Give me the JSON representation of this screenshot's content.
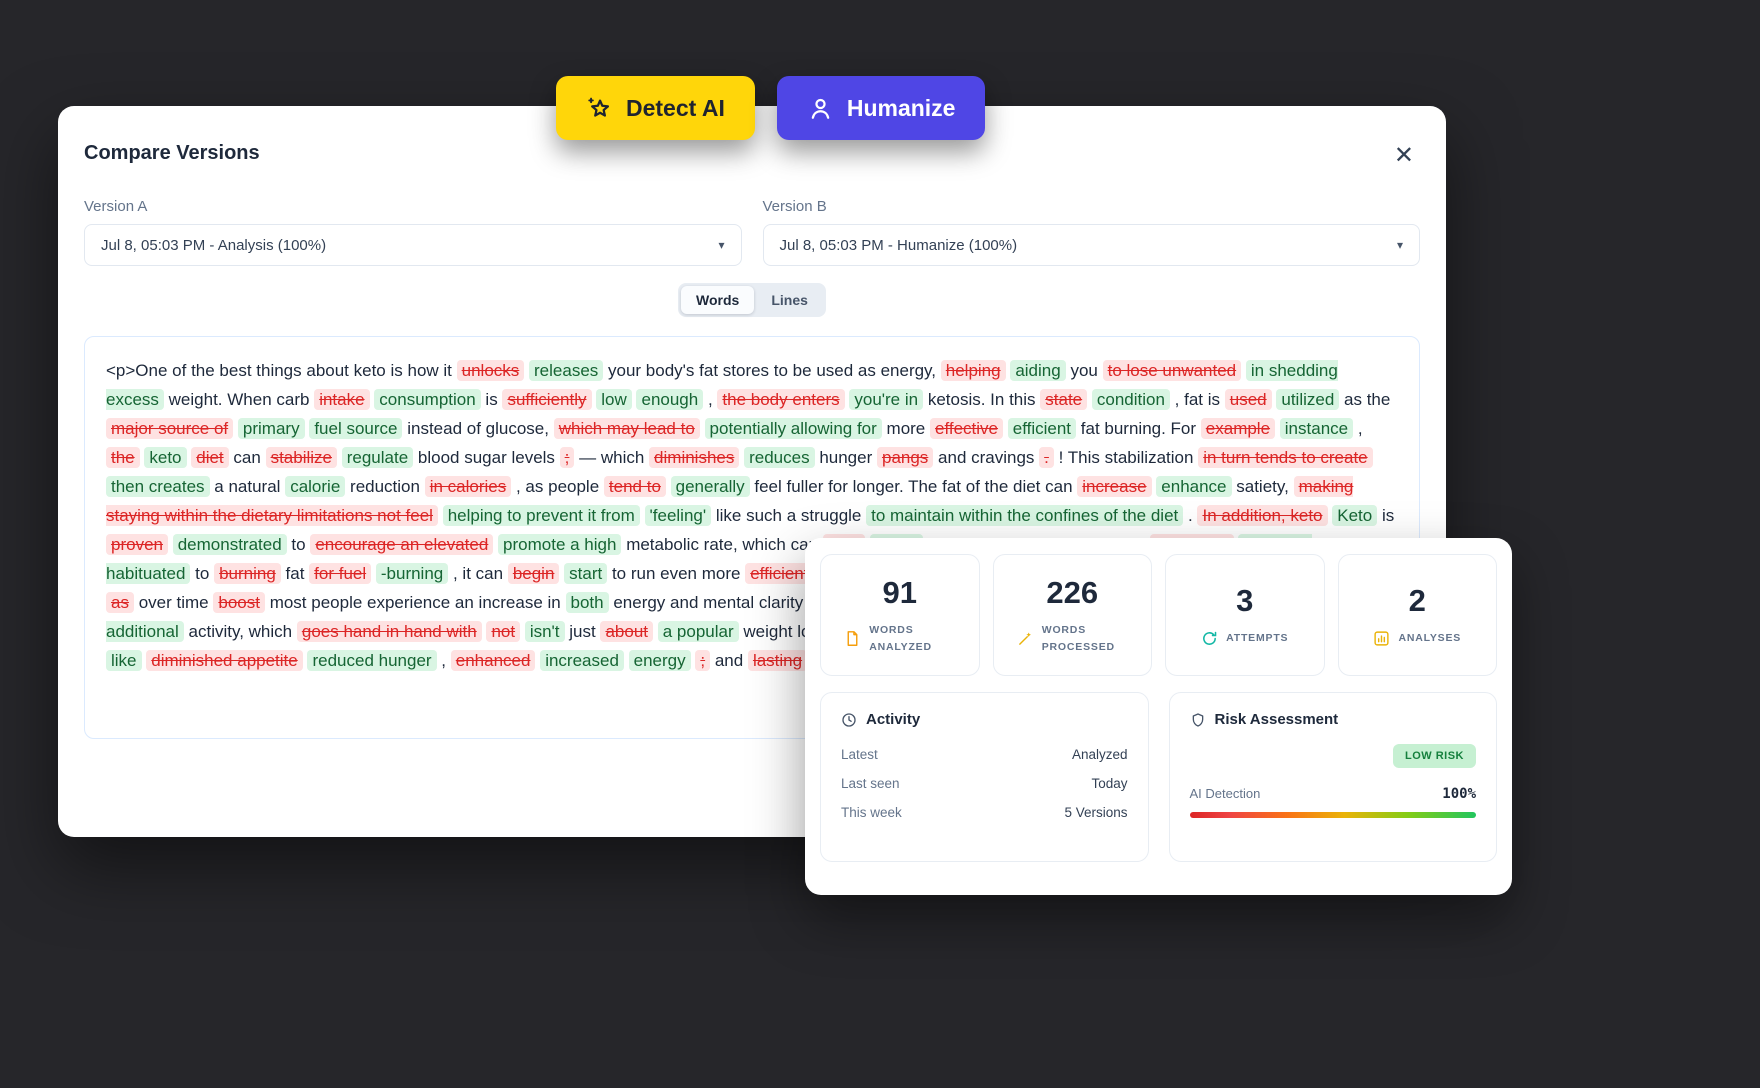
{
  "colors": {
    "background": "#26262a",
    "detect_button_bg": "#ffd60a",
    "humanize_button_bg": "#4f46e5",
    "removed_bg": "#fee2e2",
    "removed_text": "#dc2626",
    "added_bg": "#d9f5e3",
    "added_text": "#166534",
    "low_risk_badge_bg": "#c6f0d2",
    "low_risk_badge_text": "#15803d"
  },
  "top_buttons": {
    "detect": {
      "label": "Detect AI",
      "icon": "star-icon"
    },
    "humanize": {
      "label": "Humanize",
      "icon": "person-icon"
    }
  },
  "modal": {
    "title": "Compare Versions",
    "close_icon": "close-icon",
    "version_a": {
      "label": "Version A",
      "value": "Jul 8, 05:03 PM - Analysis (100%)",
      "icon": "chevron-down-icon"
    },
    "version_b": {
      "label": "Version B",
      "value": "Jul 8, 05:03 PM - Humanize (100%)",
      "icon": "chevron-down-icon"
    },
    "toggle": {
      "words": "Words",
      "lines": "Lines",
      "active": "Words"
    }
  },
  "diff": {
    "tokens": [
      {
        "k": "n",
        "t": "<p>One of the best things about keto is how it"
      },
      {
        "k": "d",
        "t": "unlocks"
      },
      {
        "k": "a",
        "t": "releases"
      },
      {
        "k": "n",
        "t": "your body's fat stores to be used as energy,"
      },
      {
        "k": "d",
        "t": "helping"
      },
      {
        "k": "a",
        "t": "aiding"
      },
      {
        "k": "n",
        "t": "you"
      },
      {
        "k": "d",
        "t": "to lose unwanted"
      },
      {
        "k": "a",
        "t": "in shedding excess"
      },
      {
        "k": "n",
        "t": "weight. When carb"
      },
      {
        "k": "d",
        "t": "intake"
      },
      {
        "k": "a",
        "t": "consumption"
      },
      {
        "k": "n",
        "t": "is"
      },
      {
        "k": "d",
        "t": "sufficiently"
      },
      {
        "k": "a",
        "t": "low"
      },
      {
        "k": "a",
        "t": "enough"
      },
      {
        "k": "n",
        "t": ","
      },
      {
        "k": "d",
        "t": "the body enters"
      },
      {
        "k": "a",
        "t": "you're in"
      },
      {
        "k": "n",
        "t": "ketosis. In this"
      },
      {
        "k": "d",
        "t": "state"
      },
      {
        "k": "a",
        "t": "condition"
      },
      {
        "k": "n",
        "t": ", fat is"
      },
      {
        "k": "d",
        "t": "used"
      },
      {
        "k": "a",
        "t": "utilized"
      },
      {
        "k": "n",
        "t": "as the"
      },
      {
        "k": "d",
        "t": "major source of"
      },
      {
        "k": "a",
        "t": "primary"
      },
      {
        "k": "a",
        "t": "fuel source"
      },
      {
        "k": "n",
        "t": "instead of glucose,"
      },
      {
        "k": "d",
        "t": "which may lead to"
      },
      {
        "k": "a",
        "t": "potentially allowing for"
      },
      {
        "k": "n",
        "t": "more"
      },
      {
        "k": "d",
        "t": "effective"
      },
      {
        "k": "a",
        "t": "efficient"
      },
      {
        "k": "n",
        "t": "fat burning. For"
      },
      {
        "k": "d",
        "t": "example"
      },
      {
        "k": "a",
        "t": "instance"
      },
      {
        "k": "n",
        "t": ","
      },
      {
        "k": "d",
        "t": "the"
      },
      {
        "k": "a",
        "t": "keto"
      },
      {
        "k": "d",
        "t": "diet"
      },
      {
        "k": "n",
        "t": "can"
      },
      {
        "k": "d",
        "t": "stabilize"
      },
      {
        "k": "a",
        "t": "regulate"
      },
      {
        "k": "n",
        "t": "blood sugar levels"
      },
      {
        "k": "d",
        "t": ";"
      },
      {
        "k": "n",
        "t": "— which"
      },
      {
        "k": "d",
        "t": "diminishes"
      },
      {
        "k": "a",
        "t": "reduces"
      },
      {
        "k": "n",
        "t": "hunger"
      },
      {
        "k": "d",
        "t": "pangs"
      },
      {
        "k": "n",
        "t": "and cravings"
      },
      {
        "k": "d",
        "t": "."
      },
      {
        "k": "n",
        "t": "! This stabilization"
      },
      {
        "k": "d",
        "t": "in turn tends to create"
      },
      {
        "k": "a",
        "t": "then creates"
      },
      {
        "k": "n",
        "t": "a natural"
      },
      {
        "k": "a",
        "t": "calorie"
      },
      {
        "k": "n",
        "t": "reduction"
      },
      {
        "k": "d",
        "t": "in calories"
      },
      {
        "k": "n",
        "t": ", as people"
      },
      {
        "k": "d",
        "t": "tend to"
      },
      {
        "k": "a",
        "t": "generally"
      },
      {
        "k": "n",
        "t": "feel fuller for longer. The fat of the diet can"
      },
      {
        "k": "d",
        "t": "increase"
      },
      {
        "k": "a",
        "t": "enhance"
      },
      {
        "k": "n",
        "t": "satiety,"
      },
      {
        "k": "d",
        "t": "making staying within the dietary limitations not feel"
      },
      {
        "k": "a",
        "t": "helping to prevent it from"
      },
      {
        "k": "a",
        "t": "'feeling'"
      },
      {
        "k": "n",
        "t": "like such a struggle"
      },
      {
        "k": "a",
        "t": "to maintain within the confines of the diet"
      },
      {
        "k": "n",
        "t": "."
      },
      {
        "k": "d",
        "t": "In addition, keto"
      },
      {
        "k": "a",
        "t": "Keto"
      },
      {
        "k": "n",
        "t": "is"
      },
      {
        "k": "d",
        "t": "proven"
      },
      {
        "k": "a",
        "t": "demonstrated"
      },
      {
        "k": "n",
        "t": "to"
      },
      {
        "k": "d",
        "t": "encourage an elevated"
      },
      {
        "k": "a",
        "t": "promote a high"
      },
      {
        "k": "n",
        "t": "metabolic rate, which can"
      },
      {
        "k": "d",
        "t": "help"
      },
      {
        "k": "a",
        "t": "assist"
      },
      {
        "k": "n",
        "t": "with weight loss. As the body"
      },
      {
        "k": "d",
        "t": "gets used"
      },
      {
        "k": "a",
        "t": "becomes habituated"
      },
      {
        "k": "n",
        "t": "to"
      },
      {
        "k": "d",
        "t": "burning"
      },
      {
        "k": "n",
        "t": "fat"
      },
      {
        "k": "d",
        "t": "for fuel"
      },
      {
        "k": "a",
        "t": "-burning"
      },
      {
        "k": "n",
        "t": ", it can"
      },
      {
        "k": "d",
        "t": "begin"
      },
      {
        "k": "a",
        "t": "start"
      },
      {
        "k": "n",
        "t": "to run even more"
      },
      {
        "k": "d",
        "t": "efficiently"
      },
      {
        "k": "a",
        "t": "readily"
      },
      {
        "k": "n",
        "t": "on stored fat,"
      },
      {
        "k": "d",
        "t": "resulting in still more"
      },
      {
        "k": "a",
        "t": "causing additional"
      },
      {
        "k": "n",
        "t": "fat loss"
      },
      {
        "k": "d",
        "t": "as"
      },
      {
        "k": "n",
        "t": "over time"
      },
      {
        "k": "d",
        "t": "boost"
      },
      {
        "k": "n",
        "t": "most people experience an increase in"
      },
      {
        "k": "a",
        "t": "both"
      },
      {
        "k": "n",
        "t": "energy and mental clarity"
      },
      {
        "k": "d",
        "t": "after"
      },
      {
        "k": "a",
        "t": "once"
      },
      {
        "k": "n",
        "t": "they've"
      },
      {
        "k": "a",
        "t": "is energizing"
      },
      {
        "k": "n",
        "t": "and"
      },
      {
        "k": "d",
        "t": "promote more"
      },
      {
        "k": "a",
        "t": "encourages additional"
      },
      {
        "k": "n",
        "t": "activity, which"
      },
      {
        "k": "d",
        "t": "goes hand in hand with"
      },
      {
        "k": "d",
        "t": "not"
      },
      {
        "k": "a",
        "t": "isn't"
      },
      {
        "k": "n",
        "t": "just"
      },
      {
        "k": "d",
        "t": "about"
      },
      {
        "k": "a",
        "t": "a popular"
      },
      {
        "k": "n",
        "t": "weight loss"
      },
      {
        "k": "d",
        "t": "by transforming"
      },
      {
        "k": "a",
        "t": "diet that turns"
      },
      {
        "k": "n",
        "t": "the body's"
      },
      {
        "k": "d",
        "t": "preferred"
      },
      {
        "k": "n",
        "t": "additional benefits"
      },
      {
        "k": "a",
        "t": "like"
      },
      {
        "k": "d",
        "t": "diminished appetite"
      },
      {
        "k": "a",
        "t": "reduced hunger"
      },
      {
        "k": "n",
        "t": ","
      },
      {
        "k": "d",
        "t": "enhanced"
      },
      {
        "k": "a",
        "t": "increased"
      },
      {
        "k": "a",
        "t": "energy"
      },
      {
        "k": "d",
        "t": ";"
      },
      {
        "k": "n",
        "t": "and"
      },
      {
        "k": "d",
        "t": "lasting"
      },
      {
        "k": "a",
        "t": "help facilitate sustainable"
      },
      {
        "k": "n",
        "t": "weight"
      },
      {
        "k": "d",
        "t": "control"
      },
      {
        "k": "a",
        "t": "management"
      },
      {
        "k": "n",
        "t": ".</p>"
      }
    ]
  },
  "stats": {
    "tiles": [
      {
        "value": "91",
        "label": "WORDS ANALYZED",
        "icon": "document-icon"
      },
      {
        "value": "226",
        "label": "WORDS PROCESSED",
        "icon": "wand-icon"
      },
      {
        "value": "3",
        "label": "ATTEMPTS",
        "icon": "refresh-icon"
      },
      {
        "value": "2",
        "label": "ANALYSES",
        "icon": "bar-chart-icon"
      }
    ],
    "activity": {
      "title": "Activity",
      "icon": "clock-icon",
      "rows": [
        {
          "label": "Latest",
          "value": "Analyzed"
        },
        {
          "label": "Last seen",
          "value": "Today"
        },
        {
          "label": "This week",
          "value": "5 Versions"
        }
      ]
    },
    "risk": {
      "title": "Risk Assessment",
      "icon": "shield-icon",
      "badge": "LOW RISK",
      "detection_label": "AI Detection",
      "detection_value": "100%"
    }
  }
}
